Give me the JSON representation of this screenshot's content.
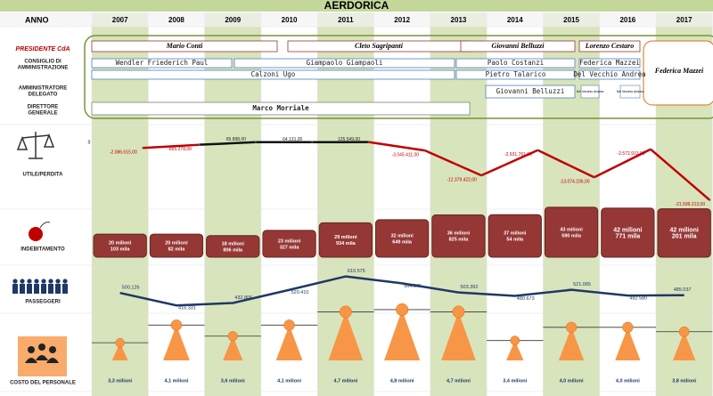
{
  "title": "AERDORICA",
  "year_header": "ANNO",
  "years": [
    "2007",
    "2008",
    "2009",
    "2010",
    "2011",
    "2012",
    "2013",
    "2014",
    "2015",
    "2016",
    "2017"
  ],
  "row_labels": {
    "presidente": "PRESIDENTE CdA",
    "consiglio": [
      "CONSIGLIO DI",
      "AMMINISTRAZIONE"
    ],
    "ad": [
      "AMMINISTRATORE",
      "DELEGATO"
    ],
    "dg": [
      "DIRETTORE",
      "GENERALE"
    ],
    "utile": "UTILE/PERDITA",
    "debito": "INDEBITAMENTO",
    "passeggeri": "PASSEGGERI",
    "personale": "COSTO DEL PERSONALE"
  },
  "presidents": [
    "Mario Conti",
    "Cleto Sagripanti",
    "Giovanni Belluzzi",
    "Lorenzo Cestaro",
    "Federica Mazzei"
  ],
  "board": [
    "Wendler Friederich Paul",
    "Giampaolo Giampaoli",
    "Paolo Costanzi",
    "Federica Mazzei",
    "Calzoni Ugo",
    "Pietro Talarico",
    "Del Vecchio Andrea"
  ],
  "ad": [
    "Giovanni Belluzzi",
    "Del Vecchio Andrea",
    "Del Vecchio Andrea"
  ],
  "dg": [
    "Marco Morriale"
  ],
  "chart_data": [
    {
      "type": "line",
      "name": "utile",
      "values": [
        -2086615,
        -895278,
        65898,
        64131,
        125549,
        -3045411,
        -12379422,
        -2931761,
        -13074236,
        -2572913,
        -21599213
      ],
      "value_labels": [
        "-2.086.615,00",
        "-895.278,00",
        "65.898,00",
        "64.131,00",
        "125.549,00",
        "-3.045.411,00",
        "-12.379.422,00",
        "-2.931.761,00",
        "-13.074.236,00",
        "-2.572.913,00",
        "-21.599.213,00"
      ],
      "ylim": [
        -25000000,
        5000000
      ],
      "yticks": [
        0
      ],
      "colors": {
        "positive": "#111111",
        "negative": "#c00000"
      }
    },
    {
      "type": "box",
      "name": "debito",
      "values": [
        20.103,
        20.082,
        18.806,
        23.327,
        29.934,
        32.649,
        36.825,
        37.054,
        43.59,
        42.771,
        42.201
      ],
      "value_labels": [
        [
          "20 milioni",
          "103 mila"
        ],
        [
          "20 milioni",
          "82 mila"
        ],
        [
          "18 milioni",
          "806 mila"
        ],
        [
          "23 milioni",
          "327 mila"
        ],
        [
          "29 milioni",
          "934 mila"
        ],
        [
          "32 milioni",
          "649 mila"
        ],
        [
          "36 milioni",
          "825 mila"
        ],
        [
          "37 milioni",
          "54 mila"
        ],
        [
          "43 milioni",
          "590 mila"
        ],
        [
          "42 milioni",
          "771 mila"
        ],
        [
          "42 milioni",
          "201 mila"
        ]
      ],
      "ylim": [
        0,
        45
      ],
      "color": "#953735"
    },
    {
      "type": "line",
      "name": "passeggeri",
      "values": [
        500126,
        416331,
        432806,
        520410,
        610575,
        564576,
        503392,
        480673,
        521065,
        482580,
        485037
      ],
      "value_labels": [
        "500.126",
        "416.331",
        "432.806",
        "520.410",
        "610.575",
        "564.576",
        "503.392",
        "480.673",
        "521.065",
        "482.580",
        "485.037"
      ],
      "ylim": [
        400000,
        650000
      ],
      "color": "#1f3864"
    },
    {
      "type": "triangle",
      "name": "personale",
      "values": [
        3.3,
        4.1,
        3.6,
        4.1,
        4.7,
        4.8,
        4.7,
        3.4,
        4.0,
        4.0,
        3.8
      ],
      "value_labels": [
        "3,3 milioni",
        "4,1 milioni",
        "3,6 milioni",
        "4,1 milioni",
        "4,7 milioni",
        "4,8 milioni",
        "4,7 milioni",
        "3,4 milioni",
        "4,0 milioni",
        "4,0 milioni",
        "3,8 milioni"
      ],
      "ylim": [
        2.5,
        5
      ],
      "color": "#f79646"
    }
  ]
}
